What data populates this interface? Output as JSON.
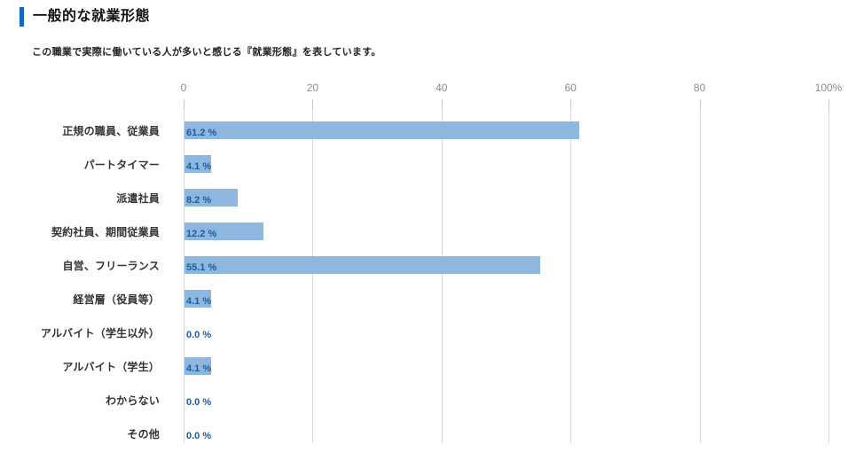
{
  "header": {
    "title": "一般的な就業形態",
    "subtitle": "この職業で実際に働いている人が多いと感じる『就業形態』を表しています。"
  },
  "chart_data": {
    "type": "bar",
    "orientation": "horizontal",
    "title": "一般的な就業形態",
    "xlabel": "",
    "ylabel": "",
    "xlim": [
      0,
      100
    ],
    "grid": true,
    "categories": [
      "正規の職員、従業員",
      "パートタイマー",
      "派遣社員",
      "契約社員、期間従業員",
      "自営、フリーランス",
      "経営層（役員等）",
      "アルバイト（学生以外）",
      "アルバイト（学生）",
      "わからない",
      "その他"
    ],
    "values": [
      61.2,
      4.1,
      8.2,
      12.2,
      55.1,
      4.1,
      0.0,
      4.1,
      0.0,
      0.0
    ],
    "value_labels": [
      "61.2 %",
      "4.1 %",
      "8.2 %",
      "12.2 %",
      "55.1 %",
      "4.1 %",
      "0.0 %",
      "4.1 %",
      "0.0 %",
      "0.0 %"
    ],
    "x_tick_values": [
      0,
      20,
      40,
      60,
      80,
      100
    ],
    "x_tick_labels": [
      "0",
      "20",
      "40",
      "60",
      "80",
      "100%"
    ],
    "colors": {
      "bar": "#8DB7DF",
      "value_label": "#1A5C9E",
      "category_label": "#333333",
      "axis_label": "#8C8C8C",
      "gridline": "#DBDBDB",
      "tick_mark": "#C5C5C5",
      "title_accent": "#1266BB"
    }
  }
}
